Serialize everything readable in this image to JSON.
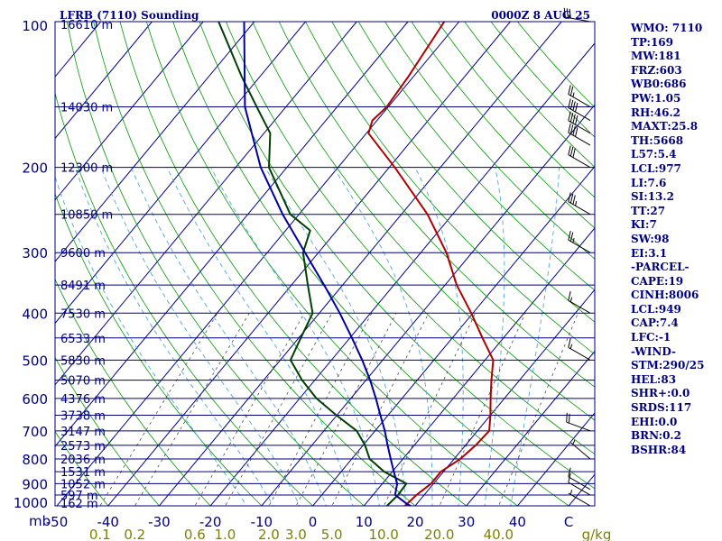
{
  "header": {
    "title": "LFRB (7110) Sounding",
    "time": "0000Z  8 AUG 25"
  },
  "colors": {
    "frame": "#000080",
    "isobar": "#000080",
    "isotherm": "#00008B",
    "dry_adiabat": "#009900",
    "moist_adiabat": "#4FA8D8",
    "mixing_ratio": "#333333",
    "temperature": "#B00000",
    "dewpoint": "#004000",
    "parcel": "#0000A0",
    "wind_barb": "#000000",
    "wind_label": "#808000"
  },
  "indices": [
    "WMO: 7110",
    "TP:169",
    "MW:181",
    "FRZ:603",
    "WB0:686",
    "PW:1.05",
    "RH:46.2",
    "MAXT:25.8",
    "TH:5668",
    "L57:5.4",
    "LCL:977",
    "LI:7.6",
    "SI:13.2",
    "TT:27",
    "KI:7",
    "SW:98",
    "EI:3.1",
    "-PARCEL-",
    "CAPE:19",
    "CINH:8006",
    "LCL:949",
    "CAP:7.4",
    "LFC:-1",
    "-WIND-",
    "STM:290/25",
    "HEL:83",
    "SHR+:0.0",
    "SRDS:117",
    "EHI:0.0",
    "BRN:0.2",
    "BSHR:84"
  ],
  "chart_data": {
    "type": "line",
    "title": "LFRB (7110) Sounding",
    "subtitle": "0000Z  8 AUG 25",
    "xlabel": "C",
    "ylabel": "mb",
    "xlim": [
      -50,
      55
    ],
    "ylim": [
      1000,
      100
    ],
    "y_log_scale": true,
    "grid": true,
    "pressure_ticks": [
      {
        "p": 100,
        "label": "100"
      },
      {
        "p": 200,
        "label": "200"
      },
      {
        "p": 300,
        "label": "300"
      },
      {
        "p": 400,
        "label": "400"
      },
      {
        "p": 500,
        "label": "500"
      },
      {
        "p": 600,
        "label": "600"
      },
      {
        "p": 700,
        "label": "700"
      },
      {
        "p": 800,
        "label": "800"
      },
      {
        "p": 900,
        "label": "900"
      },
      {
        "p": 1000,
        "label": "1000"
      }
    ],
    "height_labels": [
      {
        "p": 100,
        "label": "16610 m"
      },
      {
        "p": 150,
        "label": "14030 m"
      },
      {
        "p": 200,
        "label": "12300 m"
      },
      {
        "p": 250,
        "label": "10850 m"
      },
      {
        "p": 300,
        "label": "9600 m"
      },
      {
        "p": 350,
        "label": "8491 m"
      },
      {
        "p": 400,
        "label": "7530 m"
      },
      {
        "p": 450,
        "label": "6533 m"
      },
      {
        "p": 500,
        "label": "5830 m"
      },
      {
        "p": 550,
        "label": "5070 m"
      },
      {
        "p": 600,
        "label": "4376 m"
      },
      {
        "p": 650,
        "label": "3738 m"
      },
      {
        "p": 700,
        "label": "3147 m"
      },
      {
        "p": 750,
        "label": "2573 m"
      },
      {
        "p": 800,
        "label": "2036 m"
      },
      {
        "p": 850,
        "label": "1531 m"
      },
      {
        "p": 900,
        "label": "1052 m"
      },
      {
        "p": 950,
        "label": "597 m"
      },
      {
        "p": 1000,
        "label": "162 m"
      }
    ],
    "temperature_ticks": [
      {
        "t": -50,
        "label": "-50"
      },
      {
        "t": -40,
        "label": "-40"
      },
      {
        "t": -30,
        "label": "-30"
      },
      {
        "t": -20,
        "label": "-20"
      },
      {
        "t": -10,
        "label": "-10"
      },
      {
        "t": 0,
        "label": "0"
      },
      {
        "t": 10,
        "label": "10"
      },
      {
        "t": 20,
        "label": "20"
      },
      {
        "t": 30,
        "label": "30"
      },
      {
        "t": 40,
        "label": "40"
      },
      {
        "t": 50,
        "label": "C"
      }
    ],
    "mixing_ratio_ticks": [
      {
        "w": 0.1,
        "label": "0.1"
      },
      {
        "w": 0.2,
        "label": "0.2"
      },
      {
        "w": 0.6,
        "label": "0.6"
      },
      {
        "w": 1.0,
        "label": "1.0"
      },
      {
        "w": 2.0,
        "label": "2.0"
      },
      {
        "w": 3.0,
        "label": "3.0"
      },
      {
        "w": 5.0,
        "label": "5.0"
      },
      {
        "w": 10.0,
        "label": "10.0"
      },
      {
        "w": 20.0,
        "label": "20.0"
      },
      {
        "w": 40.0,
        "label": "40.0"
      }
    ],
    "mixing_ratio_unit": "g/kg",
    "series": [
      {
        "name": "Temperature",
        "points": [
          [
            1008,
            17.7
          ],
          [
            1000,
            18.0
          ],
          [
            950,
            18.5
          ],
          [
            900,
            19.5
          ],
          [
            850,
            19.5
          ],
          [
            800,
            21.2
          ],
          [
            750,
            22.0
          ],
          [
            700,
            22.3
          ],
          [
            650,
            20.0
          ],
          [
            600,
            17.3
          ],
          [
            550,
            14.5
          ],
          [
            500,
            11.6
          ],
          [
            450,
            5.9
          ],
          [
            400,
            -0.3
          ],
          [
            350,
            -7.7
          ],
          [
            300,
            -15.0
          ],
          [
            250,
            -24.9
          ],
          [
            200,
            -38.9
          ],
          [
            170,
            -49.6
          ],
          [
            160,
            -50.9
          ],
          [
            150,
            -50.3
          ],
          [
            130,
            -51.0
          ],
          [
            100,
            -52.9
          ]
        ]
      },
      {
        "name": "Dewpoint",
        "points": [
          [
            1000,
            14.5
          ],
          [
            950,
            14.9
          ],
          [
            900,
            14.7
          ],
          [
            850,
            8.4
          ],
          [
            800,
            3.5
          ],
          [
            750,
            0.4
          ],
          [
            700,
            -3.6
          ],
          [
            650,
            -10.1
          ],
          [
            600,
            -16.7
          ],
          [
            550,
            -22.5
          ],
          [
            500,
            -28.0
          ],
          [
            450,
            -29.6
          ],
          [
            400,
            -31.3
          ],
          [
            350,
            -36.8
          ],
          [
            300,
            -43.0
          ],
          [
            270,
            -45.2
          ],
          [
            250,
            -51.7
          ],
          [
            200,
            -63.5
          ],
          [
            170,
            -68.8
          ],
          [
            150,
            -75.7
          ],
          [
            130,
            -83.5
          ],
          [
            100,
            -97.0
          ]
        ]
      },
      {
        "name": "Parcel",
        "points": [
          [
            1008,
            20.0
          ],
          [
            990,
            18.0
          ],
          [
            949,
            14.3
          ],
          [
            900,
            12.9
          ],
          [
            850,
            10.3
          ],
          [
            800,
            7.6
          ],
          [
            750,
            4.8
          ],
          [
            700,
            1.9
          ],
          [
            650,
            -1.5
          ],
          [
            600,
            -5.1
          ],
          [
            550,
            -9.2
          ],
          [
            500,
            -14.0
          ],
          [
            450,
            -19.6
          ],
          [
            400,
            -26.0
          ],
          [
            350,
            -33.6
          ],
          [
            300,
            -42.6
          ],
          [
            250,
            -53.2
          ],
          [
            200,
            -65.1
          ],
          [
            150,
            -78.0
          ],
          [
            100,
            -92.0
          ]
        ]
      }
    ],
    "wind_barbs": [
      {
        "p": 1000,
        "dir": 300,
        "kt": 5
      },
      {
        "p": 950,
        "dir": 300,
        "kt": 10
      },
      {
        "p": 925,
        "dir": 300,
        "kt": 10
      },
      {
        "p": 800,
        "dir": 310,
        "kt": 5
      },
      {
        "p": 700,
        "dir": 290,
        "kt": 20
      },
      {
        "p": 500,
        "dir": 300,
        "kt": 15
      },
      {
        "p": 400,
        "dir": 300,
        "kt": 15
      },
      {
        "p": 300,
        "dir": 300,
        "kt": 25
      },
      {
        "p": 250,
        "dir": 300,
        "kt": 35
      },
      {
        "p": 200,
        "dir": 300,
        "kt": 30
      },
      {
        "p": 180,
        "dir": 300,
        "kt": 40
      },
      {
        "p": 170,
        "dir": 300,
        "kt": 40
      },
      {
        "p": 160,
        "dir": 300,
        "kt": 40
      },
      {
        "p": 150,
        "dir": 300,
        "kt": 25
      },
      {
        "p": 100,
        "dir": 280,
        "kt": 30
      }
    ]
  }
}
